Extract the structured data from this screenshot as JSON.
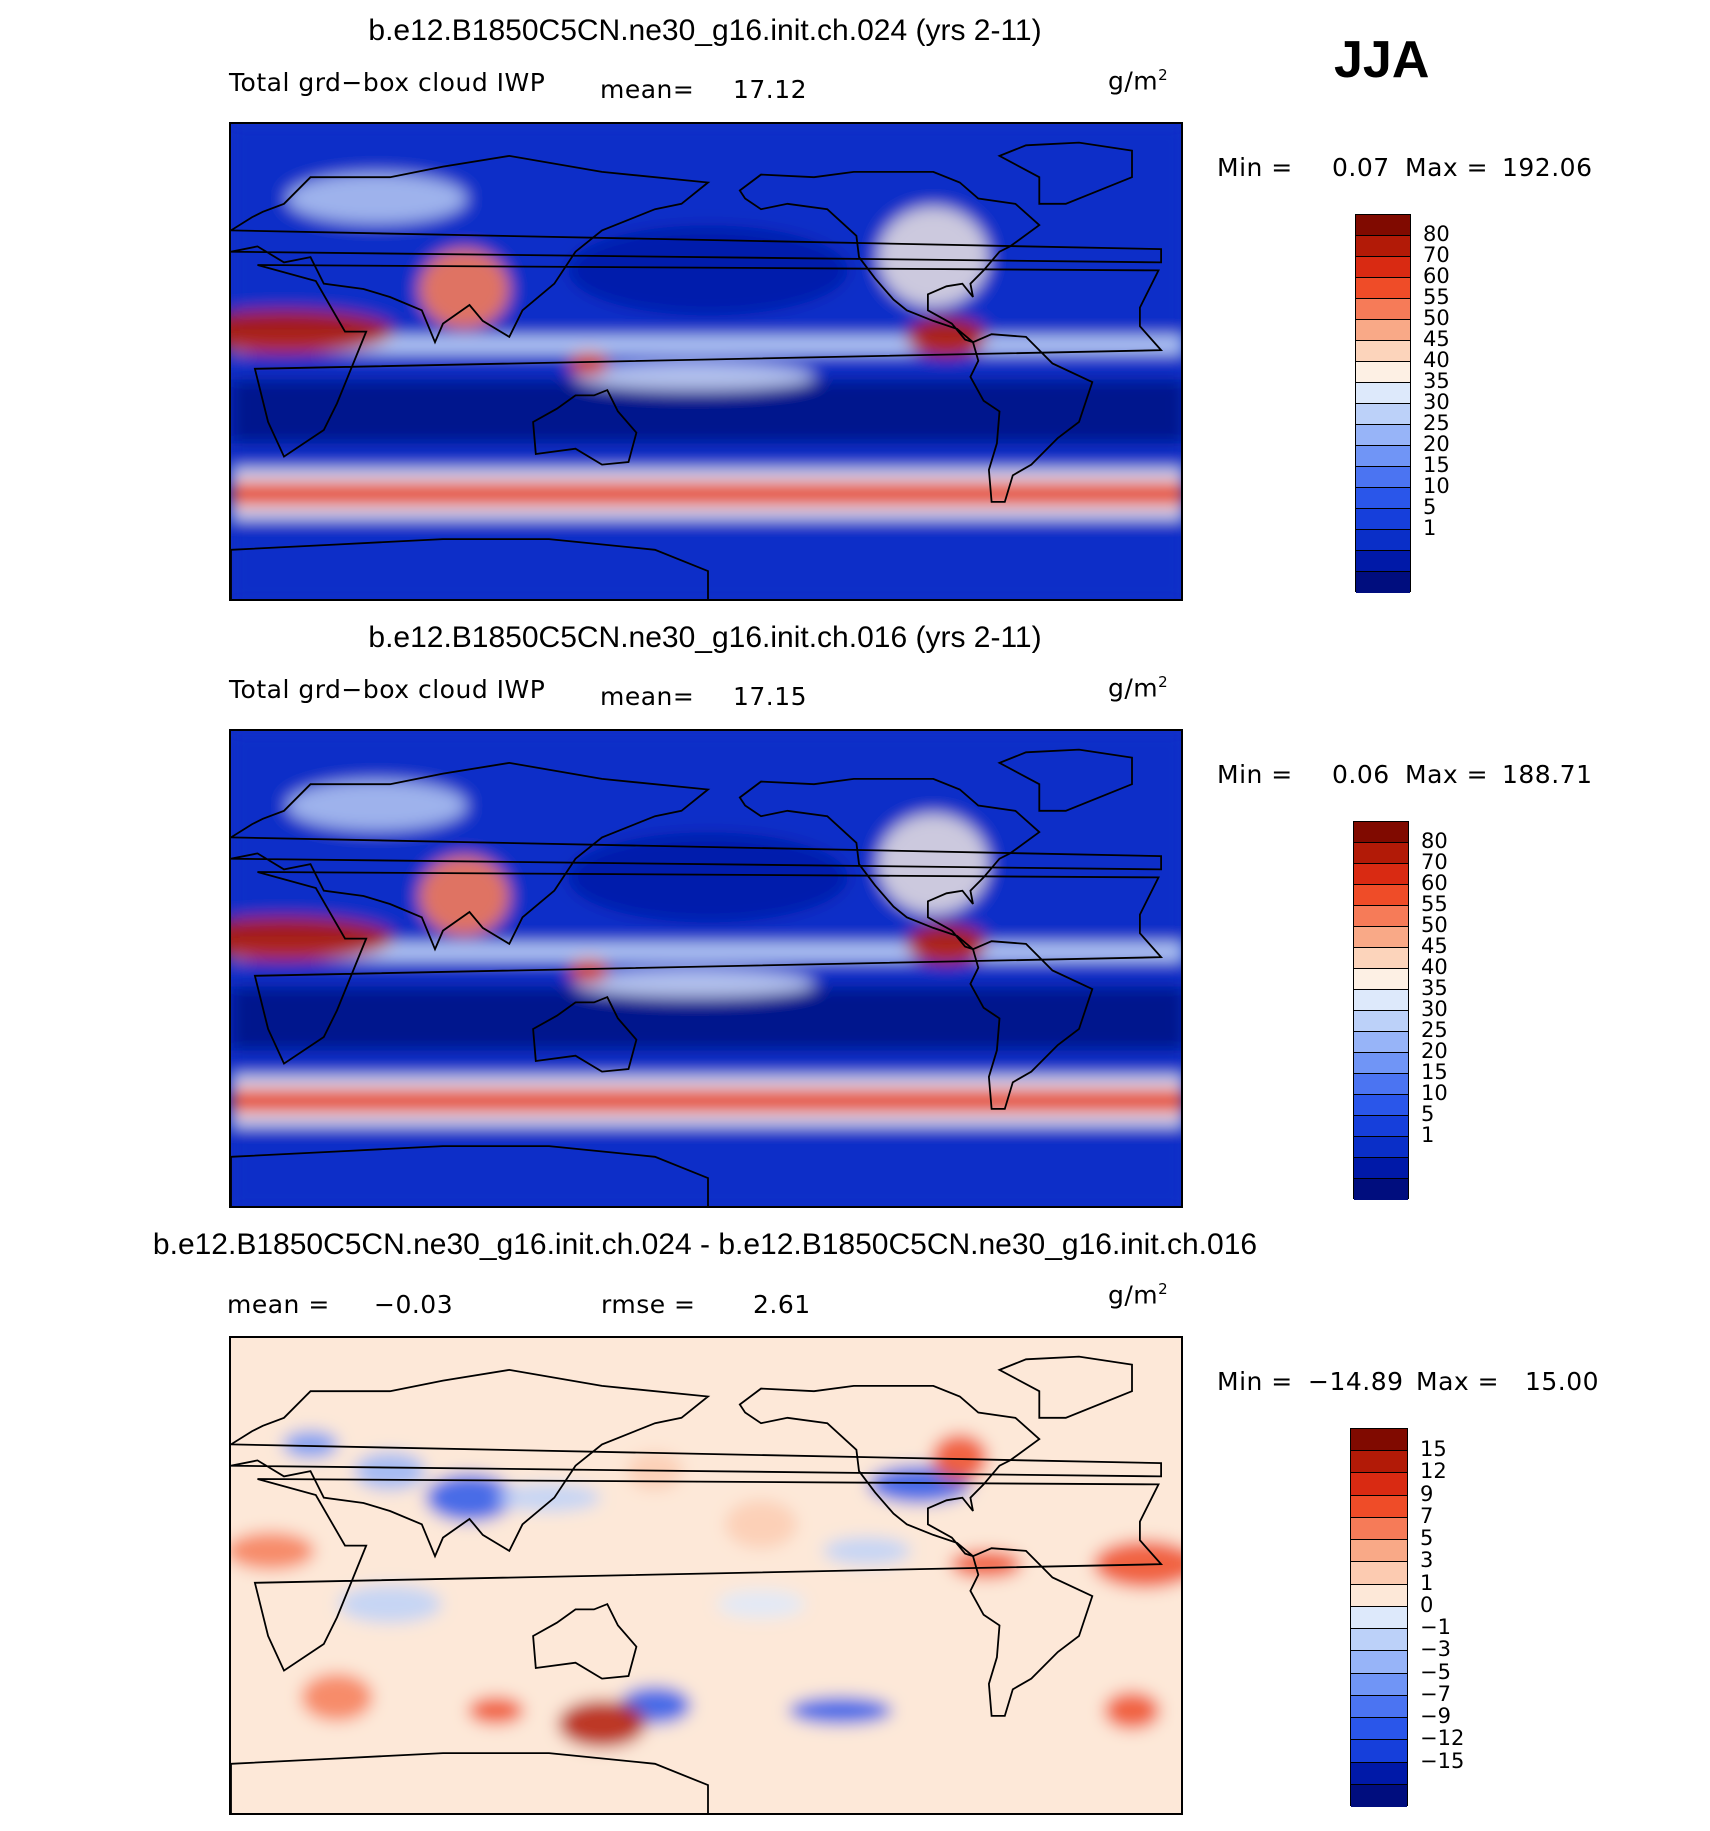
{
  "season": "JJA",
  "colors": {
    "cloud_scale": [
      "#000d7e",
      "#0019a8",
      "#0a2fc8",
      "#163fdb",
      "#2a56ea",
      "#4b74f2",
      "#7095f6",
      "#97b4f8",
      "#bcd1f9",
      "#dde9fb",
      "#fdf0e4",
      "#fcd4bb",
      "#f9a987",
      "#f67b58",
      "#ef4c28",
      "#d92a12",
      "#b21a07",
      "#800a00"
    ],
    "diff_scale": [
      "#000d7e",
      "#0019a8",
      "#163fdb",
      "#2a56ea",
      "#4b74f2",
      "#7095f6",
      "#97b4f8",
      "#bcd1f9",
      "#dde9fb",
      "#fde8d8",
      "#fccbb1",
      "#f9a987",
      "#f67b58",
      "#ef4c28",
      "#d92a12",
      "#b21a07",
      "#800a00"
    ]
  },
  "panels": [
    {
      "title": "b.e12.B1850C5CN.ne30_g16.init.ch.024 (yrs 2-11)",
      "variable_label": "Total grd−box cloud IWP",
      "mean_label": "mean=",
      "mean_value": "17.12",
      "units_base": "g/m",
      "units_exp": "2",
      "min_label": "Min =",
      "min_value": "0.07",
      "max_label": "Max =",
      "max_value": "192.06",
      "colorbar_levels": [
        "80",
        "70",
        "60",
        "55",
        "50",
        "45",
        "40",
        "35",
        "30",
        "25",
        "20",
        "15",
        "10",
        "5",
        "1"
      ],
      "map_type": "cloud"
    },
    {
      "title": "b.e12.B1850C5CN.ne30_g16.init.ch.016 (yrs 2-11)",
      "variable_label": "Total grd−box cloud IWP",
      "mean_label": "mean=",
      "mean_value": "17.15",
      "units_base": "g/m",
      "units_exp": "2",
      "min_label": "Min =",
      "min_value": "0.06",
      "max_label": "Max =",
      "max_value": "188.71",
      "colorbar_levels": [
        "80",
        "70",
        "60",
        "55",
        "50",
        "45",
        "40",
        "35",
        "30",
        "25",
        "20",
        "15",
        "10",
        "5",
        "1"
      ],
      "map_type": "cloud"
    },
    {
      "title": "b.e12.B1850C5CN.ne30_g16.init.ch.024 - b.e12.B1850C5CN.ne30_g16.init.ch.016",
      "mean_label": "mean =",
      "mean_value": "−0.03",
      "rmse_label": "rmse =",
      "rmse_value": "2.61",
      "units_base": "g/m",
      "units_exp": "2",
      "min_label": "Min =",
      "min_value": "−14.89",
      "max_label": "Max =",
      "max_value": "15.00",
      "colorbar_levels": [
        "15",
        "12",
        "9",
        "7",
        "5",
        "3",
        "1",
        "0",
        "−1",
        "−3",
        "−5",
        "−7",
        "−9",
        "−12",
        "−15"
      ],
      "map_type": "diff"
    }
  ]
}
